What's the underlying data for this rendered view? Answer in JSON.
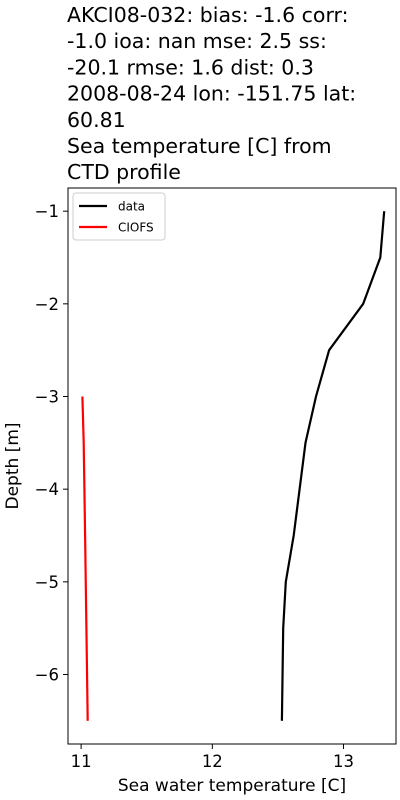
{
  "chart_data": {
    "type": "line",
    "title_lines": [
      "AKCI08-032: bias: -1.6  corr:",
      "-1.0  ioa: nan  mse: 2.5  ss:",
      "-20.1  rmse: 1.6  dist: 0.3",
      "2008-08-24 lon: -151.75 lat:",
      "60.81",
      "Sea temperature [C] from",
      "CTD profile"
    ],
    "xlabel": "Sea water temperature [C]",
    "ylabel": "Depth [m]",
    "xlim": [
      10.9,
      13.4
    ],
    "ylim": [
      -6.75,
      -0.75
    ],
    "xticks": [
      11,
      12,
      13
    ],
    "yticks": [
      -1,
      -2,
      -3,
      -4,
      -5,
      -6
    ],
    "xtick_labels": [
      "11",
      "12",
      "13"
    ],
    "ytick_labels": [
      "−1",
      "−2",
      "−3",
      "−4",
      "−5",
      "−6"
    ],
    "legend_position": "upper left",
    "grid": false,
    "series": [
      {
        "name": "data",
        "color": "#000000",
        "x": [
          13.31,
          13.28,
          13.15,
          12.89,
          12.79,
          12.71,
          12.62,
          12.56,
          12.54,
          12.53
        ],
        "y": [
          -1.0,
          -1.5,
          -2.0,
          -2.5,
          -3.0,
          -3.5,
          -4.5,
          -5.0,
          -5.5,
          -6.5
        ]
      },
      {
        "name": "CIOFS",
        "color": "#ff0000",
        "x": [
          11.01,
          11.02,
          11.03,
          11.04,
          11.05
        ],
        "y": [
          -3.0,
          -3.5,
          -4.5,
          -5.5,
          -6.5
        ]
      }
    ]
  }
}
